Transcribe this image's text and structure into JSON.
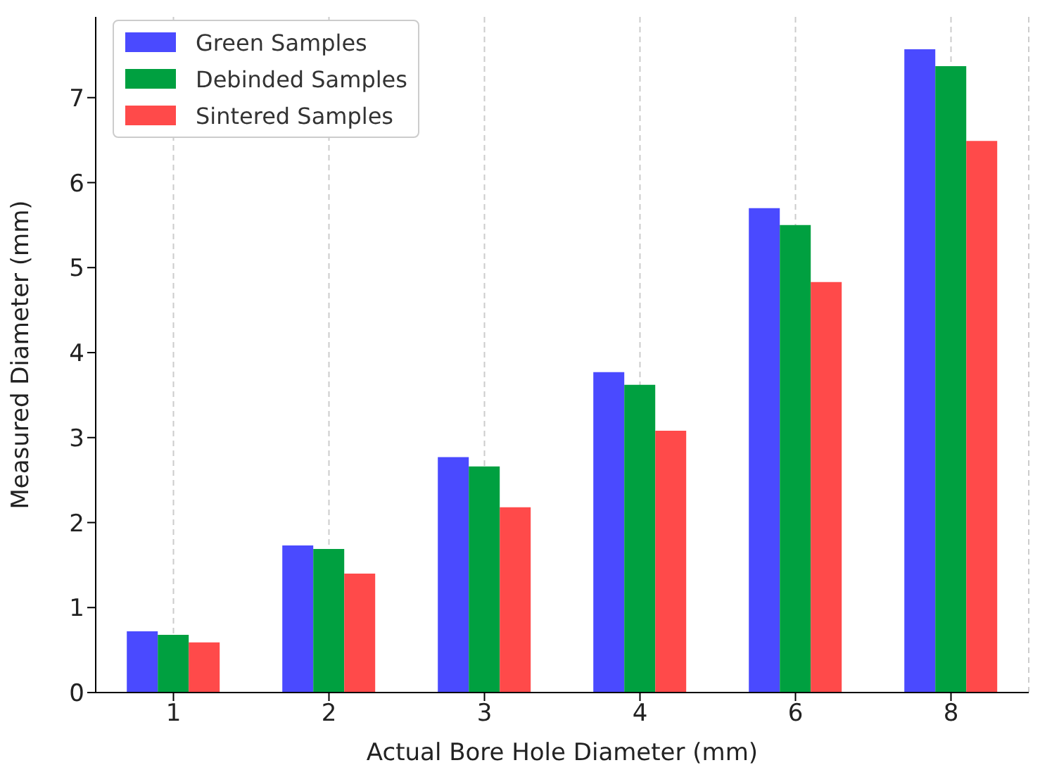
{
  "chart_data": {
    "type": "bar",
    "xlabel": "Actual Bore Hole Diameter (mm)",
    "ylabel": "Measured Diameter (mm)",
    "categories": [
      "1",
      "2",
      "3",
      "4",
      "6",
      "8"
    ],
    "series": [
      {
        "name": "Green Samples",
        "color": "#4a4aff",
        "values": [
          0.72,
          1.73,
          2.77,
          3.77,
          5.7,
          7.57
        ]
      },
      {
        "name": "Debinded Samples",
        "color": "#00a040",
        "values": [
          0.68,
          1.69,
          2.66,
          3.62,
          5.5,
          7.37
        ]
      },
      {
        "name": "Sintered Samples",
        "color": "#ff4a4a",
        "values": [
          0.59,
          1.4,
          2.18,
          3.08,
          4.83,
          6.49
        ]
      }
    ],
    "ylim": [
      0,
      7.95
    ],
    "yticks": [
      0,
      1,
      2,
      3,
      4,
      5,
      6,
      7
    ],
    "grid": "x",
    "legend": "top left"
  }
}
